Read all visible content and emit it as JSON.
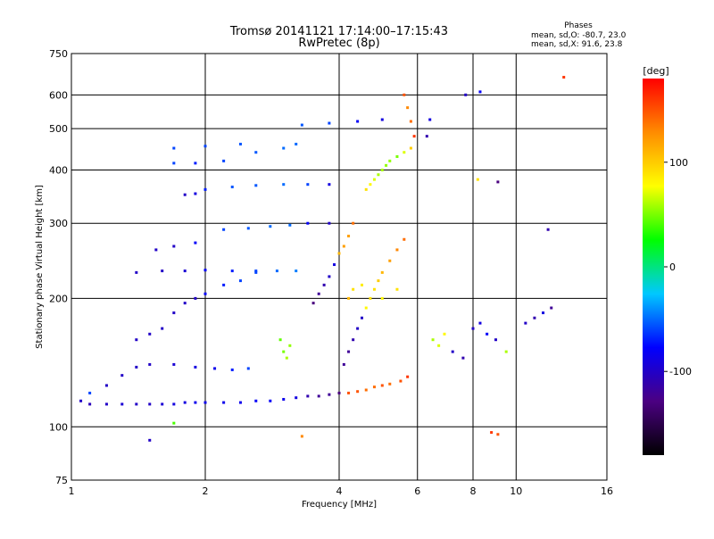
{
  "chart_data": {
    "type": "scatter",
    "title": "Tromsø 20141121 17:14:00–17:15:43",
    "subtitle": "RwPretec (8p)",
    "xlabel": "Frequency [MHz]",
    "ylabel": "Stationary phase Virtual Height [km]",
    "xscale": "log",
    "yscale": "log",
    "xlim": [
      1,
      16
    ],
    "ylim": [
      75,
      750
    ],
    "x_ticks": [
      1,
      2,
      4,
      6,
      8,
      10,
      16
    ],
    "x_tick_labels": [
      "1",
      "2",
      "4",
      "6",
      "8",
      "10",
      "16"
    ],
    "y_ticks": [
      75,
      100,
      200,
      300,
      400,
      500,
      600,
      750
    ],
    "y_tick_labels": [
      "75",
      "100",
      "200",
      "300",
      "400",
      "500",
      "600",
      "750"
    ],
    "grid": true,
    "phases_legend": {
      "title": "Phases",
      "line_o": "mean, sd,O: -80.7, 23.0",
      "line_x": "mean, sd,X:  91.6, 23.8"
    },
    "colorbar": {
      "label": "[deg]",
      "range": [
        -180,
        180
      ],
      "tick_values": [
        100,
        0,
        -100
      ],
      "tick_labels": [
        "100",
        "0",
        "-100"
      ],
      "colors": [
        "#000000",
        "#4b0082",
        "#0000ff",
        "#00c8ff",
        "#00ff00",
        "#ffff00",
        "#ff8c00",
        "#ff0000"
      ]
    },
    "series": [
      {
        "points": [
          [
            1.05,
            115,
            -100
          ],
          [
            1.1,
            113,
            -105
          ],
          [
            1.2,
            113,
            -100
          ],
          [
            1.3,
            113,
            -95
          ],
          [
            1.4,
            113,
            -100
          ],
          [
            1.5,
            113,
            -100
          ],
          [
            1.6,
            113,
            -95
          ],
          [
            1.7,
            113,
            -90
          ],
          [
            1.8,
            114,
            -90
          ],
          [
            1.9,
            114,
            -85
          ],
          [
            2.0,
            114,
            -85
          ],
          [
            2.2,
            114,
            -85
          ],
          [
            2.4,
            114,
            -85
          ],
          [
            2.6,
            115,
            -80
          ],
          [
            2.8,
            115,
            -80
          ],
          [
            3.0,
            116,
            -85
          ],
          [
            3.2,
            117,
            -90
          ],
          [
            3.4,
            118,
            -110
          ],
          [
            3.6,
            118,
            -120
          ],
          [
            3.8,
            119,
            -120
          ],
          [
            4.0,
            120,
            -130
          ],
          [
            4.2,
            120,
            150
          ],
          [
            4.4,
            121,
            150
          ],
          [
            4.6,
            122,
            140
          ],
          [
            4.8,
            124,
            140
          ],
          [
            5.0,
            125,
            150
          ],
          [
            5.2,
            126,
            140
          ],
          [
            5.5,
            128,
            150
          ],
          [
            5.7,
            131,
            160
          ],
          [
            1.1,
            120,
            -60
          ],
          [
            1.2,
            125,
            -100
          ],
          [
            1.3,
            132,
            -100
          ],
          [
            1.4,
            138,
            -100
          ],
          [
            1.5,
            140,
            -100
          ],
          [
            1.7,
            140,
            -95
          ],
          [
            1.9,
            138,
            -90
          ],
          [
            2.1,
            137,
            -85
          ],
          [
            2.3,
            136,
            -70
          ],
          [
            2.5,
            137,
            -60
          ],
          [
            1.4,
            160,
            -100
          ],
          [
            1.5,
            165,
            -100
          ],
          [
            1.6,
            170,
            -100
          ],
          [
            1.7,
            185,
            -100
          ],
          [
            1.8,
            195,
            -100
          ],
          [
            1.9,
            200,
            -100
          ],
          [
            2.0,
            205,
            -80
          ],
          [
            2.2,
            215,
            -70
          ],
          [
            2.4,
            220,
            -60
          ],
          [
            2.6,
            230,
            -60
          ],
          [
            1.4,
            230,
            -100
          ],
          [
            1.6,
            232,
            -100
          ],
          [
            1.8,
            232,
            -95
          ],
          [
            2.0,
            233,
            -80
          ],
          [
            2.3,
            232,
            -70
          ],
          [
            2.6,
            232,
            -60
          ],
          [
            2.9,
            232,
            -50
          ],
          [
            3.2,
            232,
            -45
          ],
          [
            1.55,
            260,
            -100
          ],
          [
            1.7,
            265,
            -100
          ],
          [
            1.9,
            270,
            -80
          ],
          [
            2.2,
            290,
            -60
          ],
          [
            2.5,
            292,
            -55
          ],
          [
            2.8,
            295,
            -50
          ],
          [
            3.1,
            297,
            -50
          ],
          [
            3.4,
            300,
            -80
          ],
          [
            3.8,
            300,
            -100
          ],
          [
            1.8,
            350,
            -100
          ],
          [
            1.9,
            352,
            -90
          ],
          [
            2.0,
            360,
            -70
          ],
          [
            2.3,
            365,
            -55
          ],
          [
            2.6,
            368,
            -55
          ],
          [
            3.0,
            370,
            -50
          ],
          [
            3.4,
            370,
            -60
          ],
          [
            3.8,
            370,
            -90
          ],
          [
            1.7,
            415,
            -60
          ],
          [
            1.9,
            415,
            -70
          ],
          [
            2.2,
            420,
            -60
          ],
          [
            2.6,
            440,
            -55
          ],
          [
            3.0,
            450,
            -50
          ],
          [
            1.7,
            450,
            -60
          ],
          [
            2.0,
            455,
            -60
          ],
          [
            2.4,
            460,
            -55
          ],
          [
            3.2,
            460,
            -50
          ],
          [
            3.3,
            510,
            -55
          ],
          [
            3.8,
            515,
            -60
          ],
          [
            4.4,
            520,
            -80
          ],
          [
            5.0,
            525,
            -90
          ],
          [
            3.0,
            150,
            50
          ],
          [
            3.1,
            155,
            55
          ],
          [
            2.95,
            160,
            45
          ],
          [
            3.05,
            145,
            60
          ],
          [
            3.5,
            195,
            -130
          ],
          [
            3.6,
            205,
            -120
          ],
          [
            3.7,
            215,
            -110
          ],
          [
            3.8,
            225,
            -100
          ],
          [
            3.9,
            240,
            -90
          ],
          [
            4.0,
            255,
            110
          ],
          [
            4.1,
            265,
            120
          ],
          [
            4.2,
            280,
            120
          ],
          [
            4.3,
            300,
            140
          ],
          [
            4.1,
            140,
            -120
          ],
          [
            4.2,
            150,
            -120
          ],
          [
            4.3,
            160,
            -110
          ],
          [
            4.4,
            170,
            -100
          ],
          [
            4.5,
            180,
            -100
          ],
          [
            4.6,
            190,
            80
          ],
          [
            4.7,
            200,
            90
          ],
          [
            4.8,
            210,
            90
          ],
          [
            4.9,
            220,
            100
          ],
          [
            5.0,
            230,
            110
          ],
          [
            5.2,
            245,
            120
          ],
          [
            5.4,
            260,
            130
          ],
          [
            5.6,
            275,
            140
          ],
          [
            4.6,
            360,
            90
          ],
          [
            4.7,
            370,
            80
          ],
          [
            4.8,
            380,
            70
          ],
          [
            4.9,
            390,
            60
          ],
          [
            5.0,
            400,
            60
          ],
          [
            5.1,
            410,
            55
          ],
          [
            5.2,
            420,
            55
          ],
          [
            5.4,
            430,
            50
          ],
          [
            5.6,
            440,
            70
          ],
          [
            5.8,
            450,
            100
          ],
          [
            5.6,
            600,
            150
          ],
          [
            5.7,
            560,
            130
          ],
          [
            5.8,
            520,
            140
          ],
          [
            5.9,
            480,
            160
          ],
          [
            4.2,
            200,
            110
          ],
          [
            4.3,
            210,
            90
          ],
          [
            4.5,
            215,
            85
          ],
          [
            5.0,
            200,
            80
          ],
          [
            5.4,
            210,
            90
          ],
          [
            6.5,
            160,
            60
          ],
          [
            6.7,
            155,
            70
          ],
          [
            6.9,
            165,
            80
          ],
          [
            7.2,
            150,
            -100
          ],
          [
            7.6,
            145,
            -110
          ],
          [
            8.0,
            170,
            -100
          ],
          [
            8.3,
            175,
            -90
          ],
          [
            8.6,
            165,
            -80
          ],
          [
            9.0,
            160,
            -100
          ],
          [
            10.5,
            175,
            -100
          ],
          [
            11.0,
            180,
            -110
          ],
          [
            11.5,
            185,
            -90
          ],
          [
            12.0,
            190,
            -120
          ],
          [
            8.2,
            380,
            90
          ],
          [
            9.1,
            375,
            -130
          ],
          [
            11.8,
            290,
            -110
          ],
          [
            12.8,
            660,
            160
          ],
          [
            8.8,
            97,
            160
          ],
          [
            9.1,
            96,
            150
          ],
          [
            1.5,
            93,
            -100
          ],
          [
            1.7,
            102,
            40
          ],
          [
            3.3,
            95,
            130
          ],
          [
            6.3,
            480,
            -110
          ],
          [
            6.4,
            525,
            -90
          ],
          [
            7.7,
            600,
            -100
          ],
          [
            8.3,
            610,
            -80
          ],
          [
            9.5,
            150,
            60
          ]
        ]
      }
    ]
  }
}
